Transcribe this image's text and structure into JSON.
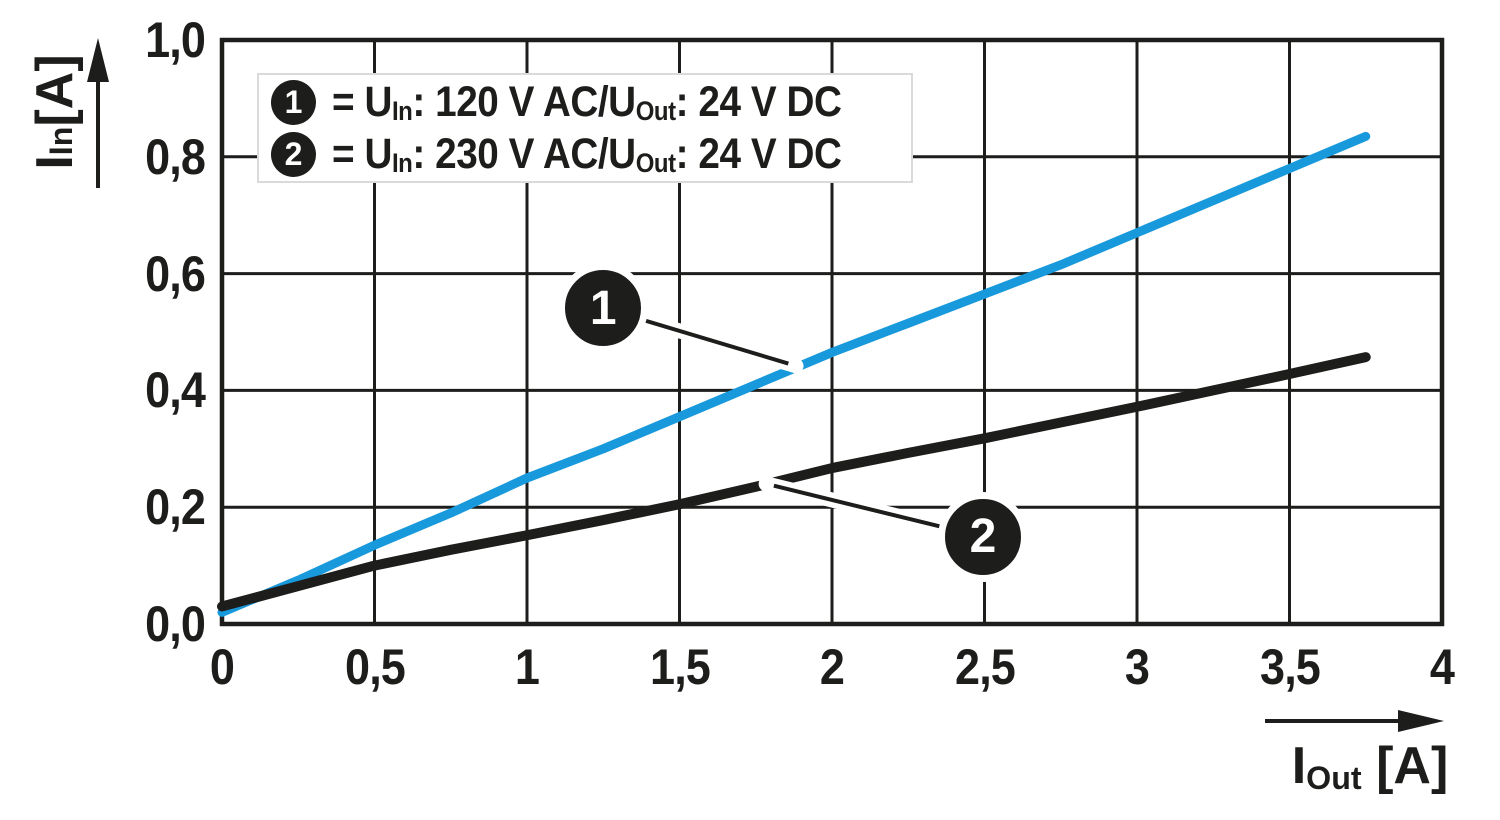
{
  "colors": {
    "ink": "#1d1d1b",
    "series1_blue": "#1899db",
    "series2_black": "#1d1d1b",
    "legend_border": "#dadada",
    "background": "#ffffff"
  },
  "legend": {
    "items": [
      {
        "badge": "1",
        "eq": "= U",
        "sub1": "In",
        "mid": ": 120 V AC/U",
        "sub2": "Out",
        "tail": ": 24 V DC"
      },
      {
        "badge": "2",
        "eq": "= U",
        "sub1": "In",
        "mid": ": 230 V AC/U",
        "sub2": "Out",
        "tail": ": 24 V DC"
      }
    ]
  },
  "chart_data": {
    "type": "line",
    "xlabel": {
      "base": "I",
      "sub": "Out",
      "unit": " [A]"
    },
    "ylabel": {
      "base": "I",
      "sub": "In",
      "unit": " [A]"
    },
    "xlim": [
      0,
      4
    ],
    "ylim": [
      0,
      1
    ],
    "grid": true,
    "x_ticks": [
      {
        "value": 0,
        "label": "0"
      },
      {
        "value": 0.5,
        "label": "0,5"
      },
      {
        "value": 1,
        "label": "1"
      },
      {
        "value": 1.5,
        "label": "1,5"
      },
      {
        "value": 2,
        "label": "2"
      },
      {
        "value": 2.5,
        "label": "2,5"
      },
      {
        "value": 3,
        "label": "3"
      },
      {
        "value": 3.5,
        "label": "3,5"
      },
      {
        "value": 4,
        "label": "4"
      }
    ],
    "y_ticks": [
      {
        "value": 0,
        "label": "0,0"
      },
      {
        "value": 0.2,
        "label": "0,2"
      },
      {
        "value": 0.4,
        "label": "0,4"
      },
      {
        "value": 0.6,
        "label": "0,6"
      },
      {
        "value": 0.8,
        "label": "0,8"
      },
      {
        "value": 1.0,
        "label": "1,0"
      }
    ],
    "series": [
      {
        "name": "1",
        "description": "UIn: 120 V AC / UOut: 24 V DC",
        "color": "#1899db",
        "width": 9,
        "points": [
          [
            0,
            0.02
          ],
          [
            0.25,
            0.075
          ],
          [
            0.5,
            0.135
          ],
          [
            0.75,
            0.19
          ],
          [
            1,
            0.25
          ],
          [
            1.25,
            0.3
          ],
          [
            1.5,
            0.355
          ],
          [
            1.75,
            0.41
          ],
          [
            2,
            0.465
          ],
          [
            2.25,
            0.515
          ],
          [
            2.5,
            0.565
          ],
          [
            2.75,
            0.615
          ],
          [
            3,
            0.67
          ],
          [
            3.25,
            0.725
          ],
          [
            3.5,
            0.78
          ],
          [
            3.75,
            0.835
          ]
        ]
      },
      {
        "name": "2",
        "description": "UIn: 230 V AC / UOut: 24 V DC",
        "color": "#1d1d1b",
        "width": 10,
        "points": [
          [
            0,
            0.03
          ],
          [
            0.25,
            0.065
          ],
          [
            0.5,
            0.1
          ],
          [
            0.75,
            0.127
          ],
          [
            1,
            0.152
          ],
          [
            1.25,
            0.178
          ],
          [
            1.5,
            0.205
          ],
          [
            1.75,
            0.235
          ],
          [
            2,
            0.267
          ],
          [
            2.25,
            0.293
          ],
          [
            2.5,
            0.318
          ],
          [
            2.75,
            0.345
          ],
          [
            3,
            0.372
          ],
          [
            3.25,
            0.4
          ],
          [
            3.5,
            0.428
          ],
          [
            3.75,
            0.457
          ]
        ]
      }
    ],
    "callouts": [
      {
        "label": "1",
        "badge_x": 1.25,
        "badge_y": 0.541,
        "target_x": 1.882,
        "target_y": 0.442
      },
      {
        "label": "2",
        "badge_x": 2.495,
        "badge_y": 0.149,
        "target_x": 1.784,
        "target_y": 0.24
      }
    ]
  }
}
